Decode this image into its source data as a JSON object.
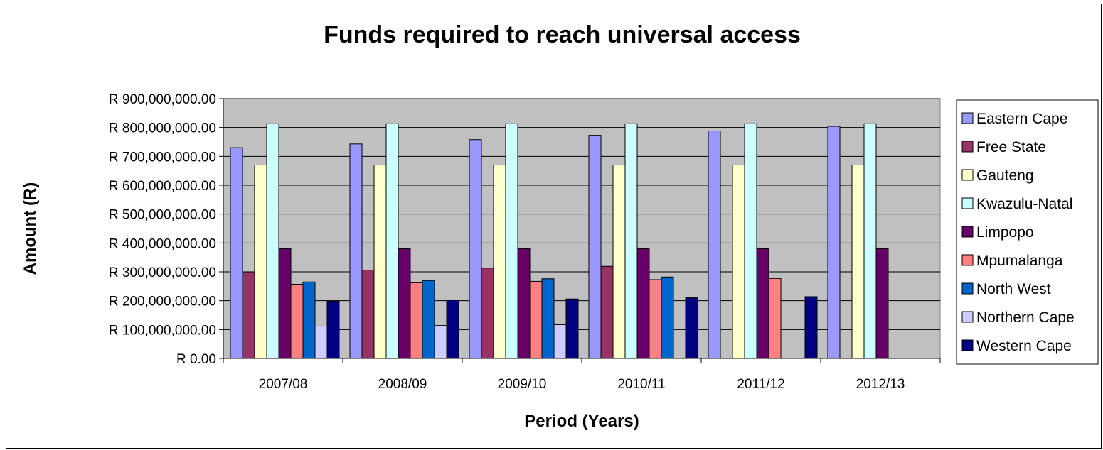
{
  "chart_data": {
    "type": "bar",
    "title": "Funds required to reach universal access",
    "xlabel": "Period (Years)",
    "ylabel": "Amount (R)",
    "categories": [
      "2007/08",
      "2008/09",
      "2009/10",
      "2010/11",
      "2011/12",
      "2012/13"
    ],
    "ylim": [
      0,
      900000000
    ],
    "ytick_labels": [
      "R 0.00",
      "R 100,000,000.00",
      "R 200,000,000.00",
      "R 300,000,000.00",
      "R 400,000,000.00",
      "R 500,000,000.00",
      "R 600,000,000.00",
      "R 700,000,000.00",
      "R 800,000,000.00",
      "R 900,000,000.00"
    ],
    "grid": true,
    "legend_position": "right",
    "plot_background": "#c0c0c0",
    "series": [
      {
        "name": "Eastern Cape",
        "color": "#9999ff",
        "values": [
          730000000,
          743000000,
          758000000,
          773000000,
          788000000,
          804000000
        ]
      },
      {
        "name": "Free State",
        "color": "#993366",
        "values": [
          300000000,
          306000000,
          313000000,
          319000000,
          0,
          0
        ]
      },
      {
        "name": "Gauteng",
        "color": "#ffffcc",
        "values": [
          670000000,
          670000000,
          670000000,
          670000000,
          670000000,
          670000000
        ]
      },
      {
        "name": "Kwazulu-Natal",
        "color": "#ccffff",
        "values": [
          813000000,
          813000000,
          813000000,
          813000000,
          813000000,
          813000000
        ]
      },
      {
        "name": "Limpopo",
        "color": "#660066",
        "values": [
          380000000,
          380000000,
          380000000,
          380000000,
          380000000,
          380000000
        ]
      },
      {
        "name": "Mpumalanga",
        "color": "#ff8080",
        "values": [
          257000000,
          262000000,
          267000000,
          273000000,
          277000000,
          0
        ]
      },
      {
        "name": "North West",
        "color": "#0066cc",
        "values": [
          265000000,
          270000000,
          276000000,
          282000000,
          0,
          0
        ]
      },
      {
        "name": "Northern Cape",
        "color": "#ccccff",
        "values": [
          112000000,
          114000000,
          117000000,
          0,
          0,
          0
        ]
      },
      {
        "name": "Western Cape",
        "color": "#000080",
        "values": [
          198000000,
          202000000,
          206000000,
          210000000,
          214000000,
          0
        ]
      }
    ]
  }
}
